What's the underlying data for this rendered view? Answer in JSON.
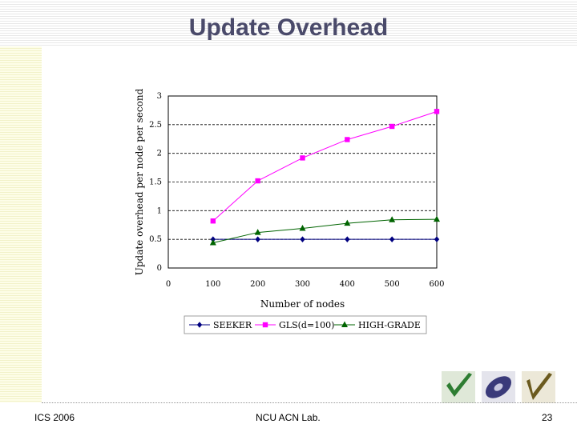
{
  "slide": {
    "title": "Update Overhead",
    "footer_left": "ICS 2006",
    "footer_center": "NCU ACN Lab.",
    "page_number": "23"
  },
  "chart_data": {
    "type": "line",
    "title": "",
    "xlabel": "Number of nodes",
    "ylabel": "Update overhead per node per second",
    "x_ticks": [
      "0",
      "100",
      "200",
      "300",
      "400",
      "500",
      "600"
    ],
    "y_ticks": [
      "0",
      "0.5",
      "1",
      "1.5",
      "2",
      "2.5",
      "3"
    ],
    "xlim": [
      0,
      600
    ],
    "ylim": [
      0,
      3
    ],
    "grid": "horizontal dashed",
    "legend_position": "bottom",
    "x": [
      100,
      200,
      300,
      400,
      500,
      600
    ],
    "series": [
      {
        "name": "SEEKER",
        "color": "#000080",
        "marker": "diamond",
        "values": [
          0.5,
          0.5,
          0.5,
          0.5,
          0.5,
          0.5
        ]
      },
      {
        "name": "GLS(d=100)",
        "color": "#ff00ff",
        "marker": "square",
        "values": [
          0.82,
          1.52,
          1.92,
          2.24,
          2.47,
          2.73
        ]
      },
      {
        "name": "HIGH-GRADE",
        "color": "#006400",
        "marker": "triangle",
        "values": [
          0.44,
          0.62,
          0.69,
          0.78,
          0.84,
          0.85
        ]
      }
    ]
  }
}
